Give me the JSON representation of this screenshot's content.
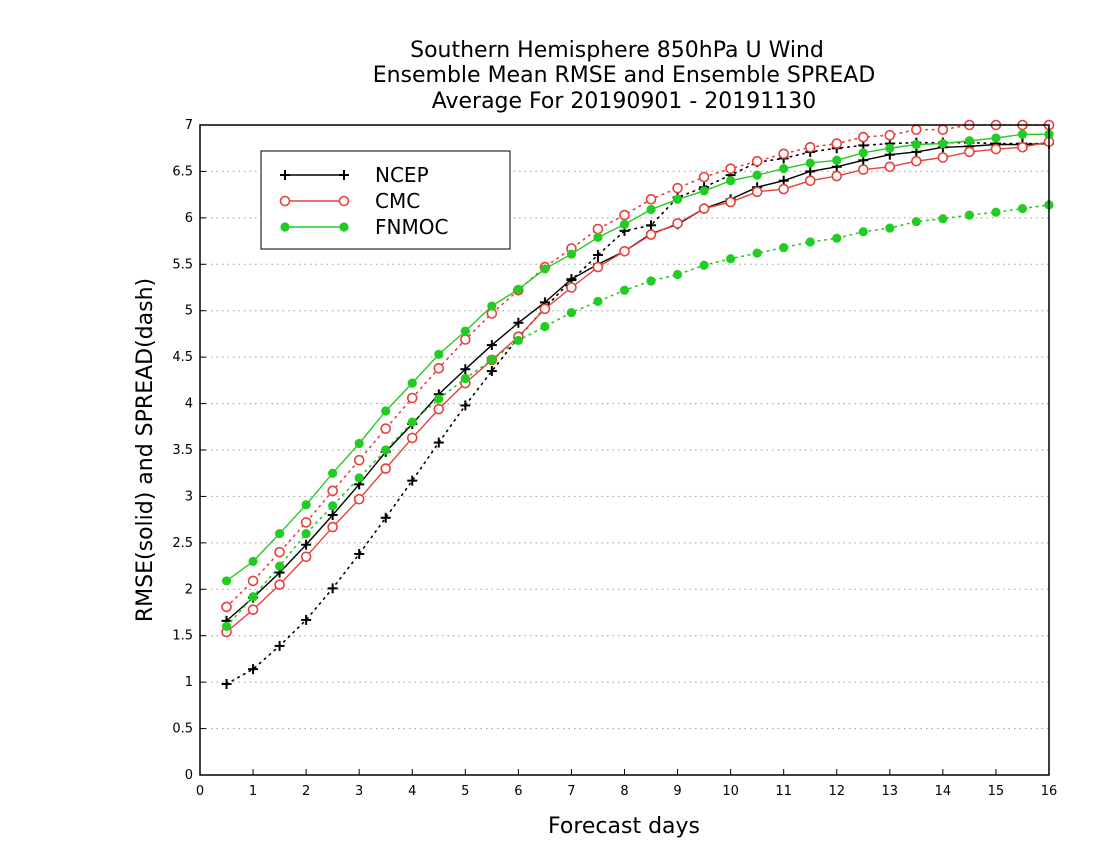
{
  "chart_data": {
    "type": "line",
    "title": [
      "Southern Hemisphere 850hPa U Wind",
      "Ensemble Mean RMSE and Ensemble SPREAD",
      "Average For 20190901 - 20191130"
    ],
    "xlabel": "Forecast days",
    "ylabel": "RMSE(solid) and SPREAD(dash)",
    "xlim": [
      0,
      16
    ],
    "ylim": [
      0,
      7
    ],
    "xticks": [
      "0",
      "1",
      "2",
      "3",
      "4",
      "5",
      "6",
      "7",
      "8",
      "9",
      "10",
      "11",
      "12",
      "13",
      "14",
      "15",
      "16"
    ],
    "yticks": [
      "0",
      "0.5",
      "1",
      "1.5",
      "2",
      "2.5",
      "3",
      "3.5",
      "4",
      "4.5",
      "5",
      "5.5",
      "6",
      "6.5",
      "7"
    ],
    "grid": true,
    "legend_position": "top-left",
    "x": [
      0.5,
      1,
      1.5,
      2,
      2.5,
      3,
      3.5,
      4,
      4.5,
      5,
      5.5,
      6,
      6.5,
      7,
      7.5,
      8,
      8.5,
      9,
      9.5,
      10,
      10.5,
      11,
      11.5,
      12,
      12.5,
      13,
      13.5,
      14,
      14.5,
      15,
      15.5,
      16
    ],
    "series": [
      {
        "name": "NCEP",
        "color": "#000000",
        "marker": "plus",
        "rmse": [
          1.66,
          1.91,
          2.18,
          2.48,
          2.8,
          3.13,
          3.48,
          3.78,
          4.1,
          4.37,
          4.63,
          4.87,
          5.09,
          5.34,
          5.5,
          5.64,
          5.83,
          5.93,
          6.1,
          6.2,
          6.33,
          6.4,
          6.5,
          6.55,
          6.62,
          6.68,
          6.71,
          6.76,
          6.77,
          6.79,
          6.79,
          6.8
        ],
        "spread": [
          0.98,
          1.14,
          1.39,
          1.67,
          2.01,
          2.38,
          2.77,
          3.17,
          3.58,
          3.98,
          4.35,
          4.71,
          5.03,
          5.33,
          5.6,
          5.86,
          5.92,
          6.22,
          6.33,
          6.46,
          6.6,
          6.64,
          6.71,
          6.75,
          6.78,
          6.8,
          6.81,
          6.81,
          6.81,
          6.8,
          6.8,
          6.8
        ]
      },
      {
        "name": "CMC",
        "color": "#e8403a",
        "marker": "open-circle",
        "rmse": [
          1.54,
          1.78,
          2.05,
          2.35,
          2.67,
          2.97,
          3.3,
          3.63,
          3.94,
          4.22,
          4.47,
          4.72,
          5.02,
          5.25,
          5.47,
          5.64,
          5.82,
          5.94,
          6.1,
          6.17,
          6.28,
          6.31,
          6.4,
          6.45,
          6.52,
          6.55,
          6.61,
          6.65,
          6.71,
          6.74,
          6.76,
          6.82
        ],
        "spread": [
          1.81,
          2.09,
          2.4,
          2.72,
          3.06,
          3.39,
          3.73,
          4.06,
          4.38,
          4.69,
          4.97,
          5.22,
          5.47,
          5.67,
          5.88,
          6.03,
          6.2,
          6.32,
          6.44,
          6.53,
          6.61,
          6.69,
          6.76,
          6.8,
          6.87,
          6.89,
          6.95,
          6.95,
          7.0,
          7.0,
          7.0,
          7.0
        ]
      },
      {
        "name": "FNMOC",
        "color": "#22cc22",
        "marker": "filled-circle",
        "rmse": [
          2.09,
          2.3,
          2.6,
          2.91,
          3.25,
          3.57,
          3.92,
          4.22,
          4.53,
          4.78,
          5.05,
          5.23,
          5.45,
          5.61,
          5.79,
          5.93,
          6.09,
          6.2,
          6.29,
          6.4,
          6.46,
          6.53,
          6.59,
          6.62,
          6.7,
          6.75,
          6.79,
          6.8,
          6.83,
          6.86,
          6.9,
          6.9
        ],
        "spread": [
          1.6,
          1.92,
          2.25,
          2.6,
          2.9,
          3.2,
          3.5,
          3.8,
          4.05,
          4.27,
          4.47,
          4.68,
          4.83,
          4.98,
          5.1,
          5.22,
          5.32,
          5.39,
          5.49,
          5.56,
          5.62,
          5.68,
          5.74,
          5.78,
          5.85,
          5.89,
          5.96,
          5.99,
          6.03,
          6.06,
          6.1,
          6.14
        ]
      }
    ]
  }
}
